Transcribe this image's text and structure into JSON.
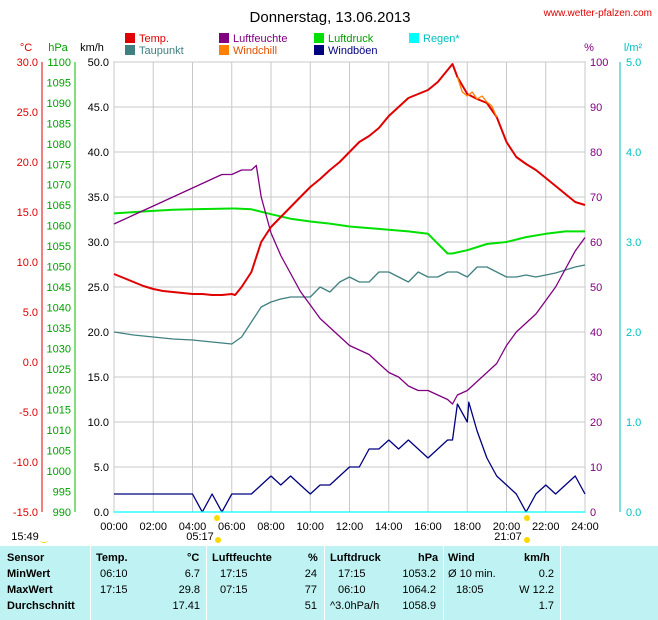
{
  "header": {
    "title": "Donnerstag, 13.06.2013",
    "source": "www.wetter-pfalzen.com"
  },
  "axis_units": {
    "temp": "°C",
    "pressure": "hPa",
    "speed": "km/h",
    "humidity": "%",
    "rain": "l/m²"
  },
  "legend": [
    {
      "label": "Temp.",
      "color": "#e00000"
    },
    {
      "label": "Luftfeuchte",
      "color": "#800080"
    },
    {
      "label": "Luftdruck",
      "color": "#00e000"
    },
    {
      "label": "Regen*",
      "color": "#00ffff"
    },
    {
      "label": "Taupunkt",
      "color": "#408080"
    },
    {
      "label": "Windchill",
      "color": "#ff8000"
    },
    {
      "label": "Windböen",
      "color": "#000080"
    }
  ],
  "markers": {
    "sunrise": "05:17",
    "sunset": "21:07",
    "moon": "15:49"
  },
  "stats": {
    "headers": [
      "Sensor",
      "Temp.",
      "°C",
      "Luftfeuchte",
      "%",
      "Luftdruck",
      "hPa",
      "Wind",
      "km/h"
    ],
    "rows": [
      {
        "label": "MinWert",
        "t_time": "06:10",
        "t_val": "6.7",
        "h_time": "17:15",
        "h_val": "24",
        "p_time": "17:15",
        "p_val": "1053.2",
        "w_time": "Ø 10 min.",
        "w_val": "0.2"
      },
      {
        "label": "MaxWert",
        "t_time": "17:15",
        "t_val": "29.8",
        "h_time": "07:15",
        "h_val": "77",
        "p_time": "06:10",
        "p_val": "1064.2",
        "w_time": "18:05",
        "w_val": "W 12.2"
      },
      {
        "label": "Durchschnitt",
        "t_time": "",
        "t_val": "17.41",
        "h_time": "",
        "h_val": "51",
        "p_time": "^3.0hPa/h",
        "p_val": "1058.9",
        "w_time": "",
        "w_val": "1.7"
      }
    ]
  },
  "chart_data": {
    "type": "line",
    "title": "Donnerstag, 13.06.2013",
    "x_ticks": [
      "00:00",
      "02:00",
      "04:00",
      "06:00",
      "08:00",
      "10:00",
      "12:00",
      "14:00",
      "16:00",
      "18:00",
      "20:00",
      "22:00",
      "24:00"
    ],
    "axes": {
      "temp_c": {
        "min": -15,
        "max": 30,
        "ticks": [
          "30.0",
          "25.0",
          "20.0",
          "15.0",
          "10.0",
          "5.0",
          "0.0",
          "-5.0",
          "-10.0",
          "-15.0"
        ]
      },
      "pressure_hpa": {
        "min": 990,
        "max": 1100,
        "ticks": [
          "1100",
          "1095",
          "1090",
          "1085",
          "1080",
          "1075",
          "1070",
          "1065",
          "1060",
          "1055",
          "1050",
          "1045",
          "1040",
          "1035",
          "1030",
          "1025",
          "1020",
          "1015",
          "1010",
          "1005",
          "1000",
          "995",
          "990"
        ]
      },
      "wind_kmh": {
        "min": 0,
        "max": 50,
        "ticks": [
          "50.0",
          "45.0",
          "40.0",
          "35.0",
          "30.0",
          "25.0",
          "20.0",
          "15.0",
          "10.0",
          "5.0",
          "0.0"
        ]
      },
      "humidity_pct": {
        "min": 0,
        "max": 100,
        "ticks": [
          "100",
          "90",
          "80",
          "70",
          "60",
          "50",
          "40",
          "30",
          "20",
          "10",
          "0"
        ]
      },
      "rain_lm2": {
        "min": 0,
        "max": 5,
        "ticks": [
          "5.0",
          "4.0",
          "3.0",
          "2.0",
          "1.0",
          "0.0"
        ]
      }
    },
    "grid": true,
    "series": [
      {
        "name": "Temp.",
        "axis": "temp_c",
        "color": "#e00000",
        "x": [
          0,
          0.5,
          1,
          1.5,
          2,
          2.5,
          3,
          3.5,
          4,
          4.5,
          5,
          5.5,
          6,
          6.17,
          6.5,
          7,
          7.25,
          7.5,
          8,
          8.5,
          9,
          9.5,
          10,
          10.5,
          11,
          11.5,
          12,
          12.5,
          13,
          13.5,
          14,
          14.5,
          15,
          15.5,
          16,
          16.5,
          17,
          17.25,
          17.5,
          18,
          18.5,
          19,
          19.5,
          20,
          20.5,
          21,
          21.5,
          22,
          22.5,
          23,
          23.5,
          24
        ],
        "y": [
          8.8,
          8.4,
          8.0,
          7.6,
          7.3,
          7.1,
          7.0,
          6.9,
          6.8,
          6.8,
          6.7,
          6.7,
          6.8,
          6.7,
          7.5,
          9.0,
          10.5,
          12.0,
          13.5,
          14.5,
          15.5,
          16.5,
          17.5,
          18.3,
          19.2,
          20.0,
          21.0,
          22.0,
          22.6,
          23.4,
          24.6,
          25.5,
          26.4,
          26.8,
          27.2,
          28.0,
          29.2,
          29.8,
          28.5,
          26.8,
          26.3,
          25.9,
          24.5,
          22.0,
          20.5,
          19.8,
          19.2,
          18.4,
          17.6,
          16.8,
          16.0,
          15.7
        ]
      },
      {
        "name": "Luftfeuchte",
        "axis": "humidity_pct",
        "color": "#800080",
        "x": [
          0,
          0.5,
          1,
          1.5,
          2,
          2.5,
          3,
          3.5,
          4,
          4.5,
          5,
          5.5,
          6,
          6.5,
          7,
          7.25,
          7.5,
          8,
          8.5,
          9,
          9.5,
          10,
          10.5,
          11,
          11.5,
          12,
          12.5,
          13,
          13.5,
          14,
          14.5,
          15,
          15.5,
          16,
          16.5,
          17,
          17.25,
          17.5,
          18,
          18.5,
          19,
          19.5,
          20,
          20.5,
          21,
          21.5,
          22,
          22.5,
          23,
          23.5,
          24
        ],
        "y": [
          64,
          65,
          66,
          67,
          68,
          69,
          70,
          71,
          72,
          73,
          74,
          75,
          75,
          76,
          76,
          77,
          70,
          62,
          57,
          53,
          49,
          46,
          43,
          41,
          39,
          37,
          36,
          35,
          33,
          31,
          30,
          28,
          27,
          27,
          26,
          25,
          24,
          26,
          27,
          29,
          31,
          33,
          37,
          40,
          42,
          44,
          47,
          50,
          54,
          58,
          61
        ]
      },
      {
        "name": "Luftdruck",
        "axis": "pressure_hpa",
        "color": "#00e000",
        "x": [
          0,
          1,
          2,
          3,
          4,
          5,
          6,
          6.17,
          7,
          8,
          9,
          10,
          11,
          12,
          13,
          14,
          15,
          16,
          17,
          17.25,
          18,
          19,
          20,
          21,
          22,
          23,
          24
        ],
        "y": [
          1063.0,
          1063.3,
          1063.6,
          1063.9,
          1064.0,
          1064.1,
          1064.2,
          1064.2,
          1064.0,
          1062.8,
          1061.7,
          1061.0,
          1060.5,
          1059.8,
          1059.4,
          1059.0,
          1058.6,
          1058.0,
          1053.2,
          1053.2,
          1054.0,
          1055.5,
          1056.0,
          1057.2,
          1058.0,
          1058.6,
          1058.6
        ]
      },
      {
        "name": "Taupunkt",
        "axis": "temp_c",
        "color": "#408080",
        "x": [
          0,
          1,
          2,
          3,
          4,
          5,
          6,
          6.5,
          7,
          7.5,
          8,
          8.5,
          9,
          9.5,
          10,
          10.5,
          11,
          11.5,
          12,
          12.5,
          13,
          13.5,
          14,
          14.5,
          15,
          15.5,
          16,
          16.5,
          17,
          17.5,
          18,
          18.5,
          19,
          19.5,
          20,
          20.5,
          21,
          21.5,
          22,
          22.5,
          23,
          23.5,
          24
        ],
        "y": [
          3.0,
          2.7,
          2.5,
          2.3,
          2.2,
          2.0,
          1.8,
          2.5,
          4.0,
          5.5,
          6.0,
          6.3,
          6.5,
          6.5,
          6.5,
          7.5,
          7.0,
          8.0,
          8.5,
          8.0,
          8.0,
          9.0,
          9.0,
          8.5,
          8.0,
          9.0,
          8.5,
          8.5,
          9.0,
          9.0,
          8.5,
          9.5,
          9.5,
          9.0,
          8.5,
          8.5,
          8.7,
          8.5,
          8.7,
          8.9,
          9.2,
          9.5,
          9.7
        ]
      },
      {
        "name": "Windchill",
        "axis": "temp_c",
        "color": "#ff8000",
        "x": [
          17.5,
          17.75,
          18,
          18.25,
          18.5,
          18.75,
          19,
          19.25,
          19.5
        ],
        "y": [
          28.5,
          27.0,
          26.6,
          27.0,
          26.3,
          26.6,
          26.0,
          25.6,
          24.5
        ]
      },
      {
        "name": "Windböen",
        "axis": "wind_kmh",
        "color": "#000080",
        "x": [
          0,
          1,
          2,
          3,
          4,
          4.5,
          5,
          5.5,
          6,
          6.5,
          7,
          7.5,
          8,
          8.5,
          9,
          9.5,
          10,
          10.5,
          11,
          11.5,
          12,
          12.5,
          13,
          13.5,
          14,
          14.5,
          15,
          15.5,
          16,
          16.5,
          17,
          17.25,
          17.5,
          18,
          18.08,
          18.5,
          19,
          19.5,
          20,
          20.5,
          21,
          21.5,
          22,
          22.5,
          23,
          23.5,
          24
        ],
        "y": [
          2,
          2,
          2,
          2,
          2,
          0,
          2,
          0,
          2,
          2,
          2,
          3,
          4,
          3,
          4,
          3,
          2,
          3,
          3,
          4,
          5,
          5,
          7,
          7,
          8,
          7,
          8,
          7,
          6,
          7,
          8,
          8,
          12,
          10,
          12.2,
          9,
          6,
          4,
          3,
          2,
          0,
          2,
          3,
          2,
          3,
          4,
          2
        ]
      },
      {
        "name": "Regen*",
        "axis": "rain_lm2",
        "color": "#00ffff",
        "x": [
          0,
          24
        ],
        "y": [
          0,
          0
        ]
      }
    ]
  }
}
